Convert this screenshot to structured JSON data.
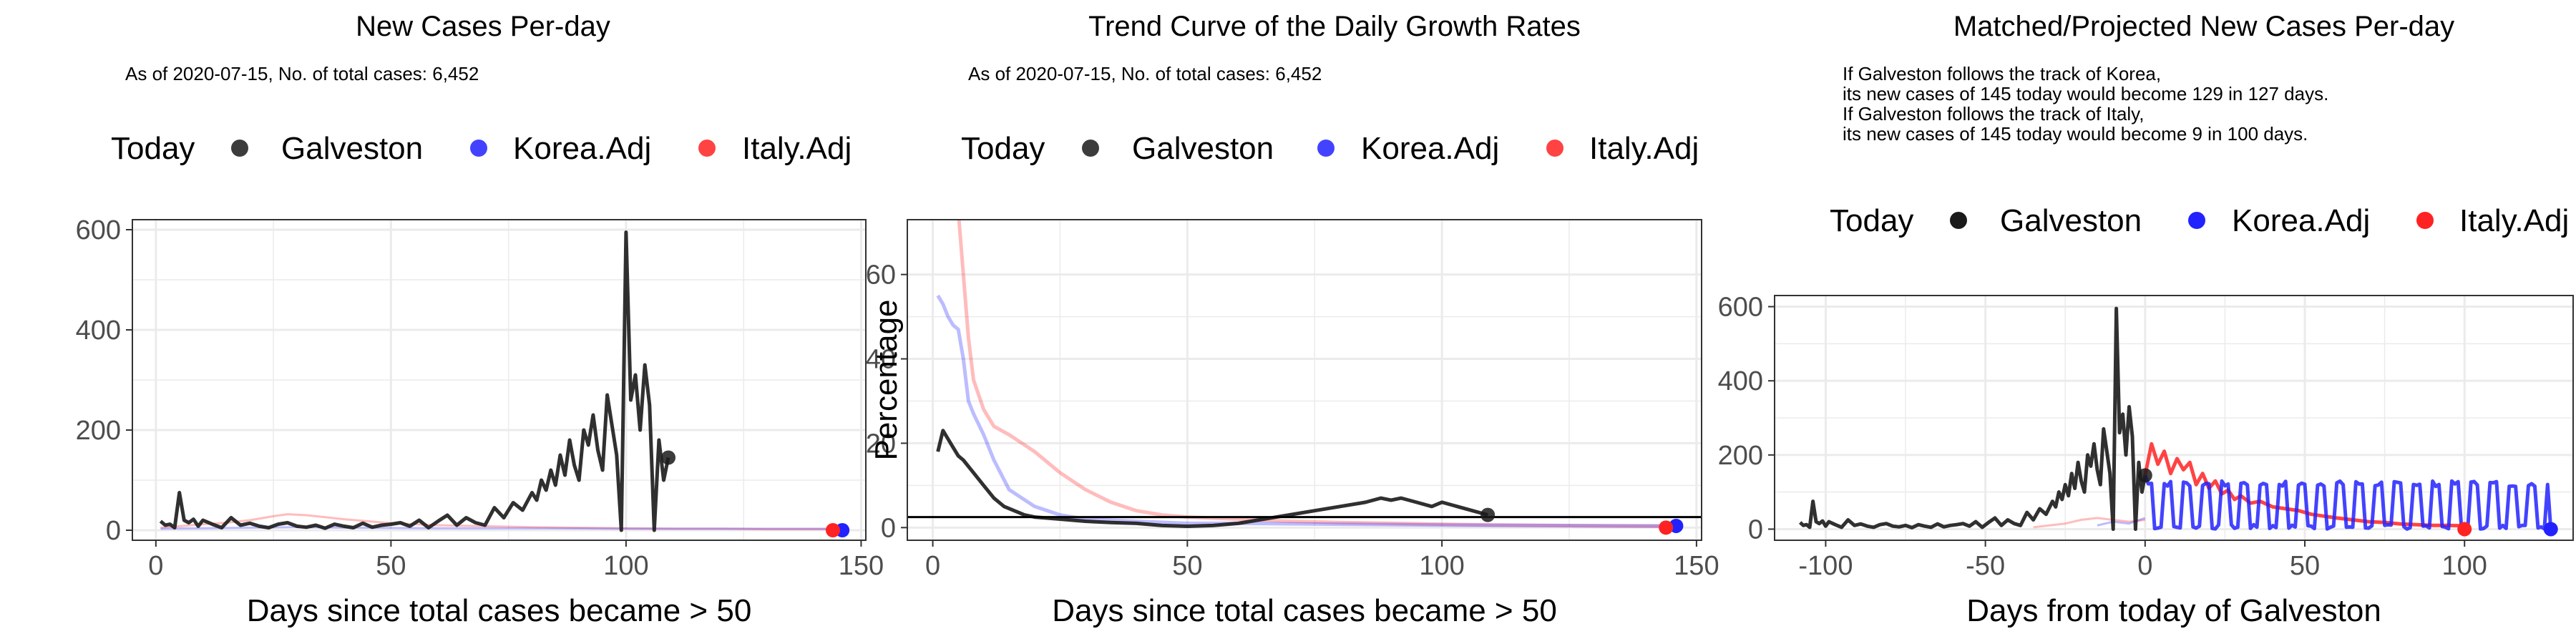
{
  "colors": {
    "galveston": "#1a1a1a",
    "korea": "#2222ff",
    "italy": "#ff2222",
    "grid": "#ebebeb",
    "panel_border": "#333333"
  },
  "chart_data": [
    {
      "type": "line",
      "title": "New Cases Per-day",
      "subtitle": [
        "As of 2020-07-15, No. of total cases: 6,452"
      ],
      "xlabel": "Days since total cases became > 50",
      "ylabel": "",
      "xlim": [
        -5,
        151
      ],
      "ylim": [
        -20,
        620
      ],
      "xticks": [
        0,
        50,
        100,
        150
      ],
      "yticks": [
        0,
        200,
        400,
        600
      ],
      "grid": true,
      "legend": {
        "position": "top",
        "title": "Today",
        "entries": [
          "Galveston",
          "Korea.Adj",
          "Italy.Adj"
        ]
      },
      "series": [
        {
          "name": "Italy.Adj",
          "color": "italy",
          "opacity": 0.3,
          "width": 3,
          "x": [
            1,
            5,
            10,
            15,
            20,
            25,
            28,
            32,
            36,
            40,
            45,
            50,
            60,
            70,
            80,
            90,
            100,
            110,
            120,
            130,
            140,
            144
          ],
          "y": [
            5,
            8,
            12,
            15,
            20,
            28,
            32,
            30,
            26,
            22,
            18,
            14,
            10,
            8,
            6,
            5,
            4,
            3,
            3,
            2,
            2,
            2
          ]
        },
        {
          "name": "Korea.Adj",
          "color": "korea",
          "opacity": 0.3,
          "width": 3,
          "x": [
            1,
            10,
            20,
            30,
            40,
            60,
            80,
            100,
            120,
            146
          ],
          "y": [
            3,
            4,
            5,
            6,
            5,
            4,
            4,
            3,
            3,
            3
          ]
        },
        {
          "name": "Galveston",
          "color": "galveston",
          "opacity": 0.9,
          "width": 5,
          "x": [
            1,
            2,
            3,
            4,
            5,
            6,
            7,
            8,
            9,
            10,
            12,
            14,
            16,
            18,
            20,
            22,
            24,
            26,
            28,
            30,
            32,
            34,
            36,
            38,
            40,
            42,
            44,
            46,
            48,
            50,
            52,
            54,
            56,
            58,
            60,
            62,
            64,
            66,
            68,
            70,
            72,
            74,
            76,
            78,
            80,
            81,
            82,
            83,
            84,
            85,
            86,
            87,
            88,
            89,
            90,
            91,
            92,
            93,
            94,
            95,
            96,
            97,
            98,
            99,
            100,
            101,
            102,
            103,
            104,
            105,
            106,
            107,
            108,
            109
          ],
          "y": [
            18,
            10,
            12,
            5,
            75,
            20,
            15,
            22,
            8,
            20,
            12,
            5,
            25,
            10,
            14,
            8,
            5,
            12,
            15,
            8,
            6,
            10,
            4,
            12,
            8,
            5,
            14,
            6,
            10,
            12,
            15,
            8,
            20,
            5,
            18,
            30,
            10,
            25,
            15,
            10,
            45,
            25,
            55,
            40,
            75,
            60,
            100,
            80,
            120,
            90,
            150,
            110,
            180,
            130,
            100,
            200,
            170,
            230,
            160,
            120,
            270,
            210,
            150,
            0,
            595,
            260,
            310,
            200,
            330,
            250,
            0,
            180,
            100,
            145
          ]
        }
      ],
      "today_points": [
        {
          "series": "Galveston",
          "x": 109,
          "y": 145
        },
        {
          "series": "Korea.Adj",
          "x": 146,
          "y": 0
        },
        {
          "series": "Italy.Adj",
          "x": 144,
          "y": 0
        }
      ]
    },
    {
      "type": "line",
      "title": "Trend Curve of the Daily Growth Rates",
      "subtitle": [
        "As of 2020-07-15, No. of total cases: 6,452"
      ],
      "xlabel": "Days since total cases became > 50",
      "ylabel": "Percentage",
      "xlim": [
        -5,
        151
      ],
      "ylim": [
        -3,
        73
      ],
      "xticks": [
        0,
        50,
        100,
        150
      ],
      "yticks": [
        0,
        20,
        40,
        60
      ],
      "hline": 2.5,
      "grid": true,
      "legend": {
        "position": "top",
        "title": "Today",
        "entries": [
          "Galveston",
          "Korea.Adj",
          "Italy.Adj"
        ]
      },
      "series": [
        {
          "name": "Italy.Adj",
          "color": "italy",
          "opacity": 0.3,
          "width": 5,
          "x": [
            5,
            6,
            7,
            8,
            10,
            12,
            15,
            20,
            25,
            30,
            35,
            40,
            45,
            50,
            60,
            70,
            80,
            90,
            100,
            110,
            120,
            130,
            144
          ],
          "y": [
            75,
            60,
            45,
            35,
            28,
            24,
            22,
            18,
            13,
            9,
            6,
            4,
            3,
            2.5,
            2,
            1.5,
            1.2,
            1,
            0.8,
            0.6,
            0.5,
            0.4,
            0.3
          ]
        },
        {
          "name": "Korea.Adj",
          "color": "korea",
          "opacity": 0.3,
          "width": 5,
          "x": [
            1,
            2,
            3,
            4,
            5,
            6,
            7,
            8,
            10,
            12,
            15,
            20,
            25,
            30,
            40,
            50,
            60,
            80,
            100,
            120,
            146
          ],
          "y": [
            55,
            53,
            50,
            48,
            47,
            40,
            30,
            27,
            22,
            16,
            9,
            5,
            3,
            2,
            1.5,
            1,
            1,
            0.8,
            0.6,
            0.5,
            0.4
          ]
        },
        {
          "name": "Galveston",
          "color": "galveston",
          "opacity": 0.9,
          "width": 5,
          "x": [
            1,
            2,
            3,
            4,
            5,
            6,
            8,
            10,
            12,
            14,
            16,
            18,
            20,
            25,
            30,
            35,
            40,
            45,
            50,
            55,
            60,
            65,
            70,
            75,
            80,
            85,
            88,
            90,
            92,
            95,
            98,
            100,
            103,
            106,
            109
          ],
          "y": [
            18,
            23,
            21,
            19,
            17,
            16,
            13,
            10,
            7,
            5,
            4,
            3,
            2.5,
            2,
            1.5,
            1.2,
            1,
            0.5,
            0.3,
            0.5,
            1,
            2,
            3,
            4,
            5,
            6,
            7,
            6.5,
            7,
            6,
            5,
            6,
            5,
            4,
            3
          ]
        }
      ],
      "today_points": [
        {
          "series": "Galveston",
          "x": 109,
          "y": 3
        },
        {
          "series": "Korea.Adj",
          "x": 146,
          "y": 0.4
        },
        {
          "series": "Italy.Adj",
          "x": 144,
          "y": 0
        }
      ]
    },
    {
      "type": "line",
      "title": "Matched/Projected New Cases Per-day",
      "subtitle": [
        "If Galveston follows the track of Korea,",
        "its new cases of 145 today would become 129 in 127 days.",
        "If Galveston follows the track of Italy,",
        "its new cases of 145 today would become 9 in 100 days."
      ],
      "xlabel": "Days from today of Galveston",
      "ylabel": "",
      "xlim": [
        -116,
        134
      ],
      "ylim": [
        -30,
        630
      ],
      "xticks": [
        -100,
        -50,
        0,
        50,
        100
      ],
      "yticks": [
        0,
        200,
        400,
        600
      ],
      "grid": true,
      "legend": {
        "position": "top",
        "title": "Today",
        "entries": [
          "Galveston",
          "Korea.Adj",
          "Italy.Adj"
        ]
      },
      "series": [
        {
          "name": "Italy.Adj",
          "color": "italy",
          "opacity": 0.3,
          "width": 3,
          "x": [
            -35,
            -30,
            -25,
            -20,
            -15,
            -10,
            -5,
            0
          ],
          "y": [
            5,
            10,
            15,
            25,
            30,
            25,
            20,
            25
          ]
        },
        {
          "name": "Korea.Adj",
          "color": "korea",
          "opacity": 0.3,
          "width": 3,
          "x": [
            -15,
            -10,
            -5,
            0
          ],
          "y": [
            10,
            20,
            15,
            30
          ]
        },
        {
          "name": "Galveston",
          "color": "galveston",
          "opacity": 0.9,
          "width": 5,
          "x": [
            -108,
            -107,
            -106,
            -105,
            -104,
            -103,
            -102,
            -101,
            -100,
            -99,
            -97,
            -95,
            -93,
            -91,
            -89,
            -87,
            -85,
            -83,
            -81,
            -79,
            -77,
            -75,
            -73,
            -71,
            -69,
            -67,
            -65,
            -63,
            -61,
            -59,
            -57,
            -55,
            -53,
            -51,
            -49,
            -47,
            -45,
            -43,
            -41,
            -39,
            -37,
            -35,
            -33,
            -31,
            -29,
            -28,
            -27,
            -26,
            -25,
            -24,
            -23,
            -22,
            -21,
            -20,
            -19,
            -18,
            -17,
            -16,
            -15,
            -14,
            -13,
            -12,
            -11,
            -10,
            -9,
            -8,
            -7,
            -6,
            -5,
            -4,
            -3,
            -2,
            -1,
            0
          ],
          "y": [
            18,
            10,
            12,
            5,
            75,
            20,
            15,
            22,
            8,
            20,
            12,
            5,
            25,
            10,
            14,
            8,
            5,
            12,
            15,
            8,
            6,
            10,
            4,
            12,
            8,
            5,
            14,
            6,
            10,
            12,
            15,
            8,
            20,
            5,
            18,
            30,
            10,
            25,
            15,
            10,
            45,
            25,
            55,
            40,
            75,
            60,
            100,
            80,
            120,
            90,
            150,
            110,
            180,
            130,
            100,
            200,
            170,
            230,
            160,
            120,
            270,
            210,
            150,
            0,
            595,
            260,
            310,
            200,
            330,
            250,
            0,
            180,
            100,
            145
          ]
        },
        {
          "name": "Italy.Adj",
          "color": "italy",
          "opacity": 0.85,
          "width": 5,
          "x": [
            0,
            2,
            4,
            6,
            8,
            10,
            12,
            14,
            16,
            18,
            20,
            22,
            24,
            26,
            28,
            30,
            33,
            36,
            40,
            44,
            48,
            52,
            56,
            60,
            65,
            70,
            75,
            80,
            85,
            90,
            95,
            100
          ],
          "y": [
            145,
            230,
            175,
            210,
            150,
            190,
            160,
            180,
            120,
            150,
            110,
            130,
            95,
            105,
            80,
            90,
            70,
            75,
            60,
            55,
            50,
            40,
            35,
            30,
            25,
            20,
            18,
            14,
            12,
            10,
            10,
            9
          ]
        },
        {
          "name": "Korea.Adj",
          "color": "korea",
          "opacity": 0.85,
          "width": 5,
          "generator": "korea_projection",
          "x_start": 0,
          "x_end": 127,
          "end_value": 129
        }
      ],
      "today_points": [
        {
          "series": "Galveston",
          "x": 0,
          "y": 145
        },
        {
          "series": "Korea.Adj",
          "x": 127,
          "y": 0
        },
        {
          "series": "Italy.Adj",
          "x": 100,
          "y": 0
        }
      ]
    }
  ]
}
